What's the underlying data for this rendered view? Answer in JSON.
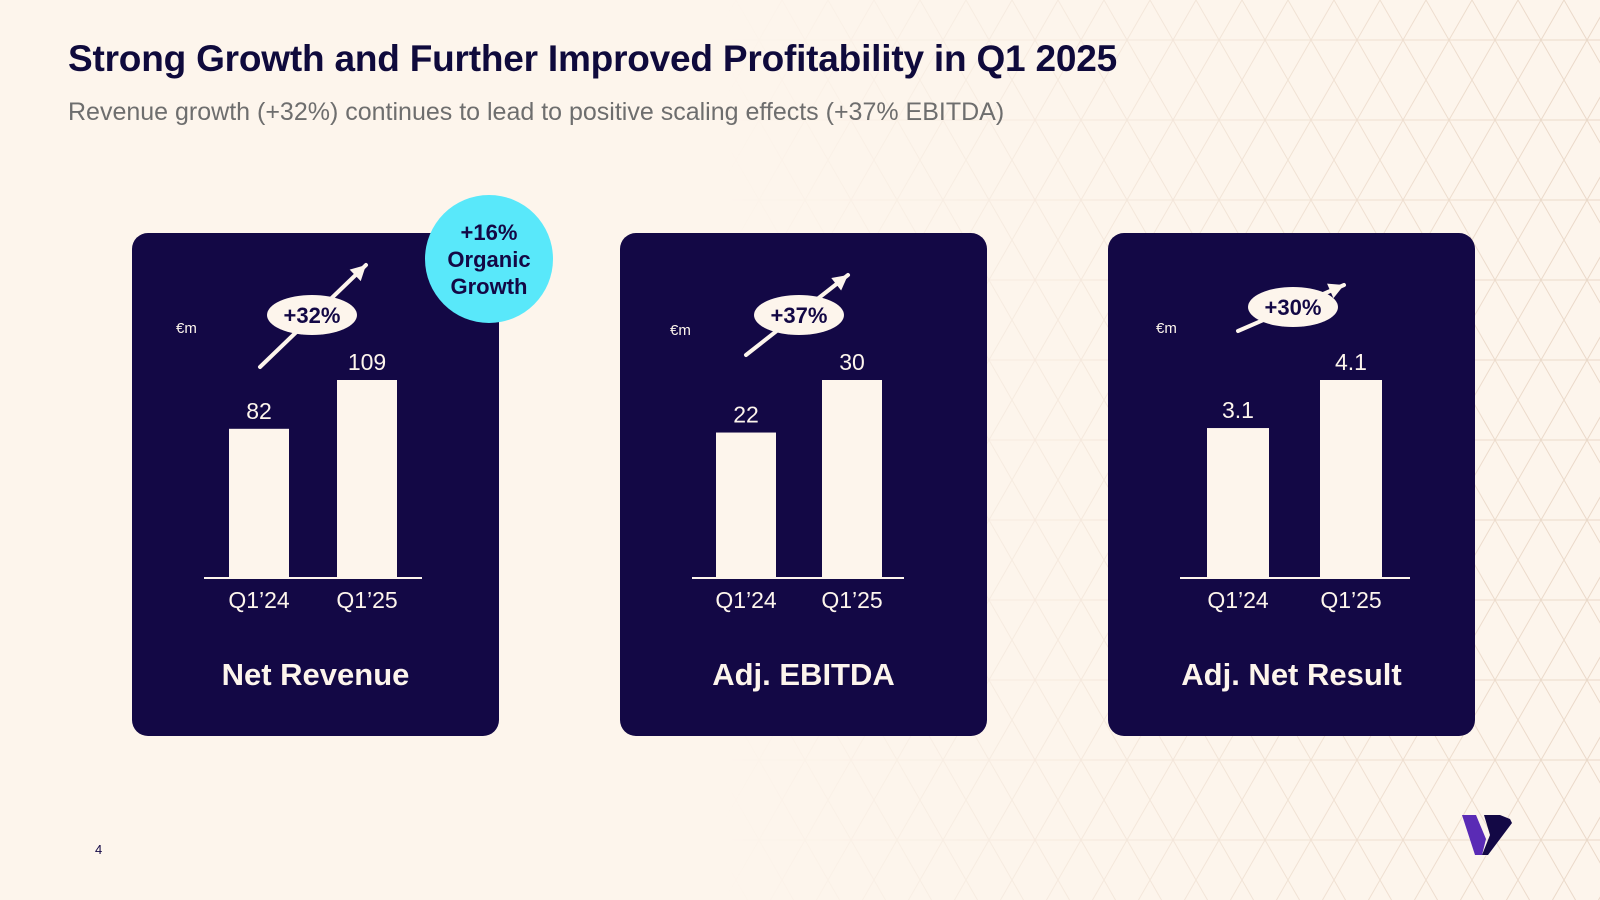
{
  "slide": {
    "title": "Strong Growth and Further Improved Profitability in Q1 2025",
    "subtitle": "Revenue growth (+32%) continues to lead to positive scaling effects (+37% EBITDA)",
    "page_number": "4"
  },
  "badge": {
    "line1": "+16%",
    "line2": "Organic",
    "line3": "Growth"
  },
  "colors": {
    "background": "#fdf5ec",
    "card": "#130845",
    "bar": "#fdf5ec",
    "badge": "#59e8fa",
    "title": "#0f0a3c"
  },
  "chart_data": [
    {
      "type": "bar",
      "title": "Net Revenue",
      "unit": "€m",
      "growth": "+32%",
      "categories": [
        "Q1’24",
        "Q1’25"
      ],
      "values": [
        82,
        109
      ],
      "labels": [
        "82",
        "109"
      ]
    },
    {
      "type": "bar",
      "title": "Adj. EBITDA",
      "unit": "€m",
      "growth": "+37%",
      "categories": [
        "Q1’24",
        "Q1’25"
      ],
      "values": [
        22,
        30
      ],
      "labels": [
        "22",
        "30"
      ]
    },
    {
      "type": "bar",
      "title": "Adj. Net Result",
      "unit": "€m",
      "growth": "+30%",
      "categories": [
        "Q1’24",
        "Q1’25"
      ],
      "values": [
        3.1,
        4.1
      ],
      "labels": [
        "3.1",
        "4.1"
      ]
    }
  ]
}
